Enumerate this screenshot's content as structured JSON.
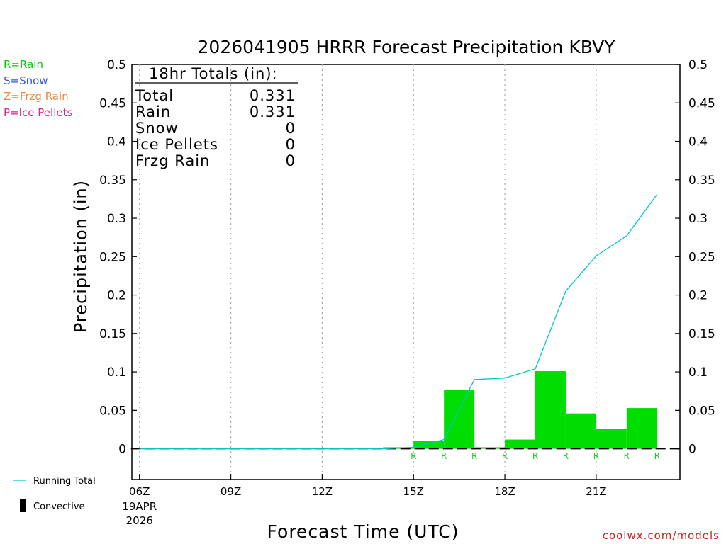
{
  "chart_data": {
    "type": "bar",
    "title": "2026041905 HRRR Forecast Precipitation KBVY",
    "xlabel": "Forecast Time (UTC)",
    "ylabel": "Precipitation (in)",
    "ylim": [
      -0.04,
      0.5
    ],
    "yticks": [
      0,
      0.05,
      0.1,
      0.15,
      0.2,
      0.25,
      0.3,
      0.35,
      0.4,
      0.45,
      0.5
    ],
    "ytick_labels": [
      "0",
      "0.05",
      "0.1",
      "0.15",
      "0.2",
      "0.25",
      "0.3",
      "0.35",
      "0.4",
      "0.45",
      "0.5"
    ],
    "xlim": [
      5.75,
      23.75
    ],
    "xticks": [
      {
        "hour": 6,
        "label": "06Z",
        "date": "19APR",
        "year": "2026"
      },
      {
        "hour": 9,
        "label": "09Z"
      },
      {
        "hour": 12,
        "label": "12Z"
      },
      {
        "hour": 15,
        "label": "15Z"
      },
      {
        "hour": 18,
        "label": "18Z"
      },
      {
        "hour": 21,
        "label": "21Z"
      }
    ],
    "hours": [
      6,
      7,
      8,
      9,
      10,
      11,
      12,
      13,
      14,
      15,
      16,
      17,
      18,
      19,
      20,
      21,
      22,
      23
    ],
    "series": [
      {
        "name": "Rain",
        "values": [
          0,
          0,
          0,
          0,
          0,
          0,
          0,
          0,
          0,
          0.002,
          0.01,
          0.077,
          0.002,
          0.012,
          0.101,
          0.046,
          0.026,
          0.053
        ],
        "color": "#00dd00"
      },
      {
        "name": "Running Total",
        "values": [
          0,
          0,
          0,
          0,
          0,
          0,
          0,
          0,
          0,
          0.002,
          0.012,
          0.09,
          0.092,
          0.104,
          0.205,
          0.251,
          0.277,
          0.331
        ],
        "color": "#00c8c8"
      }
    ],
    "ptype_markers": [
      {
        "hour": 15,
        "label": "R"
      },
      {
        "hour": 16,
        "label": "R"
      },
      {
        "hour": 17,
        "label": "R"
      },
      {
        "hour": 18,
        "label": "R"
      },
      {
        "hour": 19,
        "label": "R"
      },
      {
        "hour": 20,
        "label": "R"
      },
      {
        "hour": 21,
        "label": "R"
      },
      {
        "hour": 22,
        "label": "R"
      },
      {
        "hour": 23,
        "label": "R"
      }
    ],
    "totals_box": {
      "header": "18hr Totals (in):",
      "rows": [
        {
          "label": "Total",
          "value": "0.331"
        },
        {
          "label": "Rain",
          "value": "0.331"
        },
        {
          "label": "Snow",
          "value": "0"
        },
        {
          "label": "Ice Pellets",
          "value": "0"
        },
        {
          "label": "Frzg Rain",
          "value": "0"
        }
      ]
    },
    "ptype_legend": [
      {
        "text": "R=Rain",
        "color": "#00cc00"
      },
      {
        "text": "S=Snow",
        "color": "#3355dd"
      },
      {
        "text": "Z=Frzg Rain",
        "color": "#ee8833"
      },
      {
        "text": "P=Ice Pellets",
        "color": "#dd2288"
      }
    ],
    "legend": {
      "running_total": "Running Total",
      "convective": "Convective"
    },
    "grid": "vertical-dotted",
    "credit": "coolwx.com/models"
  }
}
